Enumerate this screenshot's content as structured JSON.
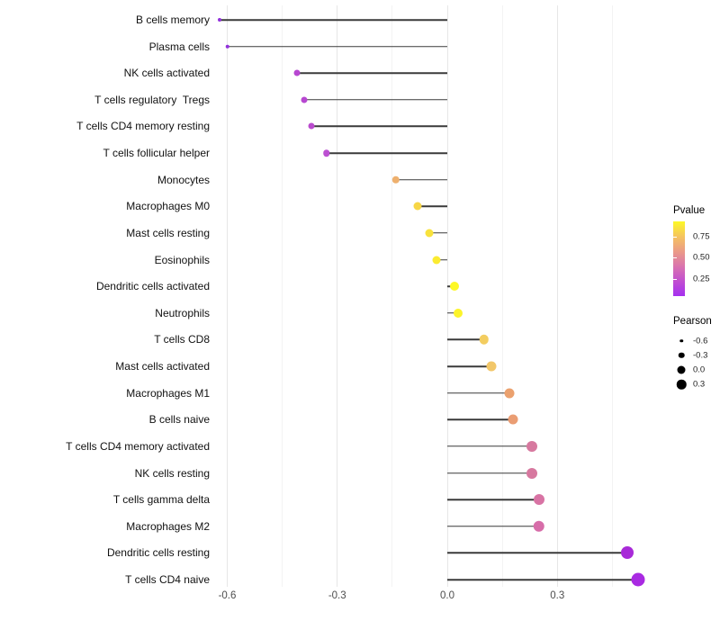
{
  "chart_data": {
    "type": "lollipop",
    "title": "",
    "xlabel": "",
    "ylabel": "",
    "x_ticks": [
      {
        "label": "-0.6",
        "value": -0.6
      },
      {
        "label": "-0.3",
        "value": -0.3
      },
      {
        "label": "0.0",
        "value": 0.0
      },
      {
        "label": "0.3",
        "value": 0.3
      }
    ],
    "xlim": [
      -0.66,
      0.56
    ],
    "grid": "vertical major and minor gridlines, white background",
    "rows": [
      {
        "label": "B cells memory",
        "pearson": -0.62,
        "dot_color": "#9231dc",
        "dot_size": 4
      },
      {
        "label": "Plasma cells",
        "pearson": -0.6,
        "dot_color": "#9231dc",
        "dot_size": 4.5
      },
      {
        "label": "NK cells activated",
        "pearson": -0.41,
        "dot_color": "#b747d1",
        "dot_size": 7
      },
      {
        "label": "T cells regulatory  Tregs",
        "pearson": -0.39,
        "dot_color": "#b747d1",
        "dot_size": 7
      },
      {
        "label": "T cells CD4 memory resting",
        "pearson": -0.37,
        "dot_color": "#ba4bce",
        "dot_size": 7
      },
      {
        "label": "T cells follicular helper",
        "pearson": -0.33,
        "dot_color": "#bc50d2",
        "dot_size": 7.5
      },
      {
        "label": "Monocytes",
        "pearson": -0.14,
        "dot_color": "#eeb06e",
        "dot_size": 8.5
      },
      {
        "label": "Macrophages M0",
        "pearson": -0.08,
        "dot_color": "#f7d646",
        "dot_size": 9
      },
      {
        "label": "Mast cells resting",
        "pearson": -0.05,
        "dot_color": "#f8e23c",
        "dot_size": 9
      },
      {
        "label": "Eosinophils",
        "pearson": -0.03,
        "dot_color": "#fbeb31",
        "dot_size": 9
      },
      {
        "label": "Dendritic cells activated",
        "pearson": 0.02,
        "dot_color": "#fdf826",
        "dot_size": 10
      },
      {
        "label": "Neutrophils",
        "pearson": 0.03,
        "dot_color": "#fcf42a",
        "dot_size": 10
      },
      {
        "label": "T cells CD8",
        "pearson": 0.1,
        "dot_color": "#f3cd60",
        "dot_size": 10.5
      },
      {
        "label": "Mast cells activated",
        "pearson": 0.12,
        "dot_color": "#f2c769",
        "dot_size": 11
      },
      {
        "label": "Macrophages M1",
        "pearson": 0.17,
        "dot_color": "#eba16e",
        "dot_size": 11
      },
      {
        "label": "B cells naive",
        "pearson": 0.18,
        "dot_color": "#ea9d73",
        "dot_size": 11
      },
      {
        "label": "T cells CD4 memory activated",
        "pearson": 0.23,
        "dot_color": "#d7799f",
        "dot_size": 12
      },
      {
        "label": "NK cells resting",
        "pearson": 0.23,
        "dot_color": "#d7789f",
        "dot_size": 12
      },
      {
        "label": "T cells gamma delta",
        "pearson": 0.25,
        "dot_color": "#d873a4",
        "dot_size": 12
      },
      {
        "label": "Macrophages M2",
        "pearson": 0.25,
        "dot_color": "#d76da9",
        "dot_size": 12.5
      },
      {
        "label": "Dendritic cells resting",
        "pearson": 0.49,
        "dot_color": "#a82ad8",
        "dot_size": 14
      },
      {
        "label": "T cells CD4 naive",
        "pearson": 0.52,
        "dot_color": "#a92ae2",
        "dot_size": 15
      }
    ],
    "legend": {
      "pvalue": {
        "title": "Pvalue",
        "ticks": [
          {
            "label": "0.75",
            "frac_from_top": 0.21
          },
          {
            "label": "0.50",
            "frac_from_top": 0.48
          },
          {
            "label": "0.25",
            "frac_from_top": 0.77
          }
        ],
        "gradient_stops": [
          "#fdf926",
          "#f5c45f",
          "#eb9b87",
          "#da74ae",
          "#c14fd0",
          "#a52ff0"
        ]
      },
      "pearson": {
        "title": "Pearson",
        "items": [
          {
            "label": "-0.6",
            "size": 3.5
          },
          {
            "label": "-0.3",
            "size": 6.5
          },
          {
            "label": "0.0",
            "size": 9
          },
          {
            "label": "0.3",
            "size": 10.5
          }
        ]
      }
    }
  }
}
